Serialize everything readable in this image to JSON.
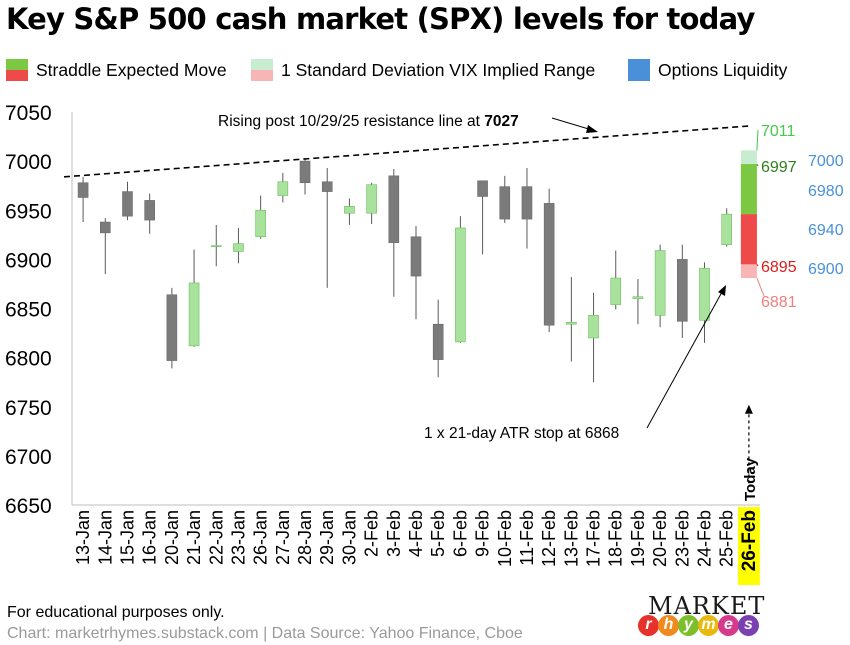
{
  "chart_data": {
    "type": "candlestick",
    "title": "Key S&P 500 cash market (SPX) levels for today",
    "ylim": [
      6650,
      7050
    ],
    "yticks": [
      6650,
      6700,
      6750,
      6800,
      6850,
      6900,
      6950,
      7000,
      7050
    ],
    "categories": [
      "13-Jan",
      "14-Jan",
      "15-Jan",
      "16-Jan",
      "20-Jan",
      "21-Jan",
      "22-Jan",
      "23-Jan",
      "26-Jan",
      "27-Jan",
      "28-Jan",
      "29-Jan",
      "30-Jan",
      "2-Feb",
      "3-Feb",
      "4-Feb",
      "5-Feb",
      "6-Feb",
      "9-Feb",
      "10-Feb",
      "11-Feb",
      "12-Feb",
      "13-Feb",
      "17-Feb",
      "18-Feb",
      "19-Feb",
      "20-Feb",
      "23-Feb",
      "24-Feb",
      "25-Feb",
      "26-Feb"
    ],
    "candles": [
      {
        "date": "13-Jan",
        "open": 6978,
        "high": 6984,
        "low": 6938,
        "close": 6963
      },
      {
        "date": "14-Jan",
        "open": 6938,
        "high": 6942,
        "low": 6885,
        "close": 6927
      },
      {
        "date": "15-Jan",
        "open": 6969,
        "high": 6979,
        "low": 6940,
        "close": 6944
      },
      {
        "date": "16-Jan",
        "open": 6960,
        "high": 6967,
        "low": 6926,
        "close": 6940
      },
      {
        "date": "20-Jan",
        "open": 6864,
        "high": 6871,
        "low": 6789,
        "close": 6797
      },
      {
        "date": "21-Jan",
        "open": 6812,
        "high": 6910,
        "low": 6811,
        "close": 6876
      },
      {
        "date": "22-Jan",
        "open": 6913,
        "high": 6935,
        "low": 6893,
        "close": 6914
      },
      {
        "date": "23-Jan",
        "open": 6908,
        "high": 6932,
        "low": 6896,
        "close": 6916
      },
      {
        "date": "26-Jan",
        "open": 6923,
        "high": 6965,
        "low": 6921,
        "close": 6950
      },
      {
        "date": "27-Jan",
        "open": 6965,
        "high": 6988,
        "low": 6958,
        "close": 6979
      },
      {
        "date": "28-Jan",
        "open": 7000,
        "high": 7003,
        "low": 6966,
        "close": 6978
      },
      {
        "date": "29-Jan",
        "open": 6979,
        "high": 6993,
        "low": 6871,
        "close": 6969
      },
      {
        "date": "30-Jan",
        "open": 6947,
        "high": 6962,
        "low": 6935,
        "close": 6954
      },
      {
        "date": "2-Feb",
        "open": 6947,
        "high": 6978,
        "low": 6936,
        "close": 6976
      },
      {
        "date": "3-Feb",
        "open": 6985,
        "high": 6992,
        "low": 6862,
        "close": 6917
      },
      {
        "date": "4-Feb",
        "open": 6923,
        "high": 6934,
        "low": 6839,
        "close": 6883
      },
      {
        "date": "5-Feb",
        "open": 6834,
        "high": 6859,
        "low": 6780,
        "close": 6798
      },
      {
        "date": "6-Feb",
        "open": 6816,
        "high": 6944,
        "low": 6815,
        "close": 6932
      },
      {
        "date": "9-Feb",
        "open": 6980,
        "high": 6980,
        "low": 6905,
        "close": 6964
      },
      {
        "date": "10-Feb",
        "open": 6974,
        "high": 6985,
        "low": 6937,
        "close": 6941
      },
      {
        "date": "11-Feb",
        "open": 6974,
        "high": 6993,
        "low": 6911,
        "close": 6941
      },
      {
        "date": "12-Feb",
        "open": 6957,
        "high": 6972,
        "low": 6826,
        "close": 6833
      },
      {
        "date": "13-Feb",
        "open": 6834,
        "high": 6882,
        "low": 6796,
        "close": 6836
      },
      {
        "date": "17-Feb",
        "open": 6820,
        "high": 6866,
        "low": 6775,
        "close": 6843
      },
      {
        "date": "18-Feb",
        "open": 6854,
        "high": 6909,
        "low": 6849,
        "close": 6881
      },
      {
        "date": "19-Feb",
        "open": 6860,
        "high": 6880,
        "low": 6834,
        "close": 6862
      },
      {
        "date": "20-Feb",
        "open": 6843,
        "high": 6915,
        "low": 6831,
        "close": 6909
      },
      {
        "date": "23-Feb",
        "open": 6900,
        "high": 6915,
        "low": 6820,
        "close": 6837
      },
      {
        "date": "24-Feb",
        "open": 6838,
        "high": 6897,
        "low": 6815,
        "close": 6891
      },
      {
        "date": "25-Feb",
        "open": 6915,
        "high": 6952,
        "low": 6913,
        "close": 6946
      }
    ],
    "today": {
      "label": "26-Feb",
      "marker_label": "Today",
      "vix_range": [
        6881,
        7011
      ],
      "straddle_up": [
        6946,
        6997
      ],
      "straddle_down": [
        6895,
        6946
      ],
      "level_labels": [
        {
          "text": "7011",
          "value": 7011,
          "color": "#44c94a"
        },
        {
          "text": "6997",
          "value": 6997,
          "color": "#2f7d1e"
        },
        {
          "text": "6895",
          "value": 6895,
          "color": "#e01b1b"
        },
        {
          "text": "6881",
          "value": 6881,
          "color": "#f07f7f"
        }
      ],
      "liquidity": [
        {
          "text": "7000",
          "value": 7000
        },
        {
          "text": "6980",
          "value": 6980
        },
        {
          "text": "6940",
          "value": 6940
        },
        {
          "text": "6900",
          "value": 6900
        }
      ]
    },
    "resistance_line": {
      "start_value": 6984,
      "end_value": 7036,
      "level": 7027
    },
    "atr_stop": 6868,
    "annotations": {
      "resistance_text": "Rising post 10/29/25 resistance line at ",
      "resistance_value": "7027",
      "atr_text": "1 x 21-day ATR stop at 6868"
    }
  },
  "legend": [
    {
      "label": "Straddle Expected Move",
      "type": "straddle",
      "color_up": "#7dc843",
      "color_down": "#ee4a4a"
    },
    {
      "label": "1 Standard Deviation VIX Implied Range",
      "type": "vix",
      "color_up": "#c8ecd0",
      "color_down": "#f7b5b5"
    },
    {
      "label": "Options Liquidity",
      "type": "liquidity",
      "color": "#4a90d9"
    }
  ],
  "colors": {
    "bear_fill": "#7b7b7b",
    "bull_fill": "#a9e29c",
    "bull_stroke": "#6bbf5f",
    "axis": "#bfbfbf",
    "liquidity_text": "#4a90d9",
    "today_highlight": "#ffff00"
  },
  "footer": {
    "note": "For educational purposes only.",
    "source": "Chart: marketrhymes.substack.com | Data Source: Yahoo Finance, Cboe"
  },
  "logo": {
    "top": "MARKET",
    "bottom_letters": [
      "r",
      "h",
      "y",
      "m",
      "e",
      "s"
    ],
    "bottom_colors": [
      "#e6322b",
      "#f08a1d",
      "#7cbf2a",
      "#e8b90e",
      "#d63a8a",
      "#7a3fb1"
    ]
  }
}
